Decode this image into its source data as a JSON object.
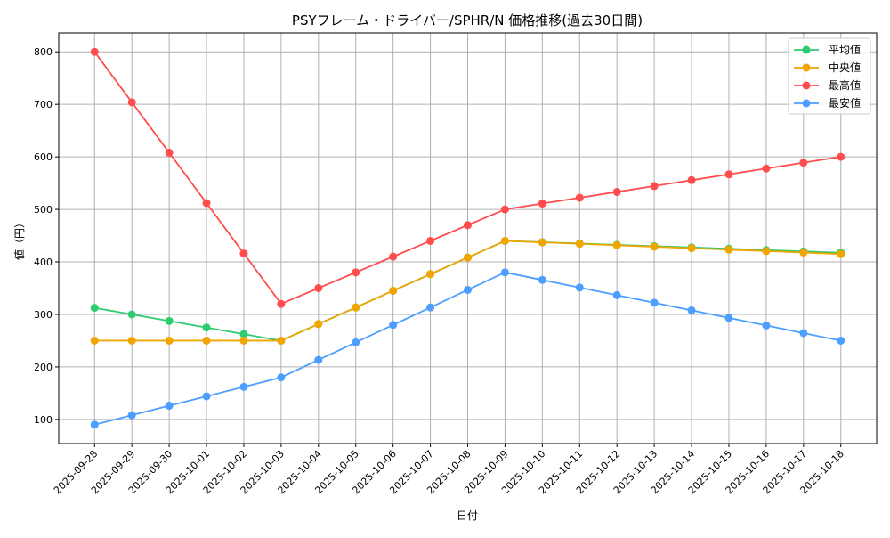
{
  "chart_data": {
    "type": "line",
    "title": "PSYフレーム・ドライバー/SPHR/N 価格推移(過去30日間)",
    "xlabel": "日付",
    "ylabel": "値（円）",
    "ylim": [
      54,
      836
    ],
    "yticks": [
      100,
      200,
      300,
      400,
      500,
      600,
      700,
      800
    ],
    "grid": true,
    "legend_position": "top-right",
    "categories": [
      "2025-09-28",
      "2025-09-29",
      "2025-09-30",
      "2025-10-01",
      "2025-10-02",
      "2025-10-03",
      "2025-10-04",
      "2025-10-05",
      "2025-10-06",
      "2025-10-07",
      "2025-10-08",
      "2025-10-09",
      "2025-10-10",
      "2025-10-11",
      "2025-10-12",
      "2025-10-13",
      "2025-10-14",
      "2025-10-15",
      "2025-10-16",
      "2025-10-17",
      "2025-10-18"
    ],
    "series": [
      {
        "name": "平均値",
        "color": "#2ecc71",
        "values": [
          312.5,
          300,
          287.5,
          275,
          262.5,
          250,
          281.7,
          313.3,
          345,
          376.7,
          408.3,
          440,
          437.5,
          435,
          432.5,
          430,
          427.5,
          425,
          422.5,
          420,
          417.5
        ]
      },
      {
        "name": "中央値",
        "color": "#f0a500",
        "values": [
          250,
          250,
          250,
          250,
          250,
          250,
          281.7,
          313.3,
          345,
          376.7,
          408.3,
          440,
          437.2,
          434.4,
          431.7,
          428.9,
          426.1,
          423.3,
          420.6,
          417.8,
          415
        ]
      },
      {
        "name": "最高値",
        "color": "#ff4d4d",
        "values": [
          800,
          704,
          608,
          512,
          416,
          320,
          350,
          380,
          410,
          440,
          470,
          500,
          511.1,
          522.2,
          533.3,
          544.4,
          555.6,
          566.7,
          577.8,
          588.9,
          600
        ]
      },
      {
        "name": "最安値",
        "color": "#4d9fff",
        "values": [
          90,
          108,
          126,
          144,
          162,
          180,
          213.3,
          246.7,
          280,
          313.3,
          346.7,
          380,
          365.6,
          351.1,
          336.7,
          322.2,
          307.8,
          293.3,
          278.9,
          264.4,
          250
        ]
      }
    ]
  }
}
